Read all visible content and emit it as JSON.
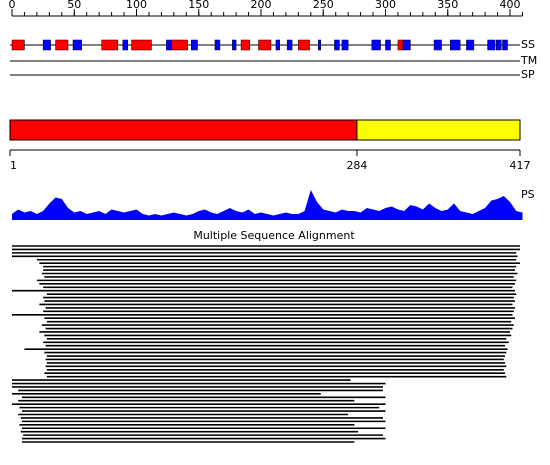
{
  "ruler": {
    "ticks": [
      0,
      50,
      100,
      150,
      200,
      250,
      300,
      350,
      400
    ],
    "minor_step": 10,
    "end": 410
  },
  "tracks": {
    "labels": [
      "SS",
      "TM",
      "SP"
    ]
  },
  "ss_colors": {
    "H": "#ff0000",
    "E": "#0000ff"
  },
  "secondary_structure": [
    [
      "H",
      0,
      10
    ],
    [
      "E",
      25,
      31
    ],
    [
      "H",
      35,
      45
    ],
    [
      "E",
      49,
      56
    ],
    [
      "H",
      72,
      85
    ],
    [
      "E",
      89,
      93
    ],
    [
      "H",
      96,
      112
    ],
    [
      "E",
      124,
      128
    ],
    [
      "H",
      128,
      141
    ],
    [
      "E",
      144,
      149
    ],
    [
      "E",
      163,
      167
    ],
    [
      "E",
      177,
      180
    ],
    [
      "H",
      184,
      191
    ],
    [
      "H",
      198,
      208
    ],
    [
      "E",
      212,
      215
    ],
    [
      "E",
      221,
      225
    ],
    [
      "H",
      230,
      239
    ],
    [
      "E",
      246,
      248
    ],
    [
      "E",
      259,
      263
    ],
    [
      "E",
      265,
      270
    ],
    [
      "E",
      289,
      296
    ],
    [
      "E",
      300,
      304
    ],
    [
      "H",
      310,
      314
    ],
    [
      "E",
      314,
      320
    ],
    [
      "E",
      339,
      345
    ],
    [
      "E",
      352,
      360
    ],
    [
      "E",
      365,
      371
    ],
    [
      "E",
      382,
      388
    ],
    [
      "E",
      389,
      393
    ],
    [
      "E",
      394,
      398
    ]
  ],
  "domains": {
    "boundaries": [
      1,
      284,
      417
    ],
    "colors": [
      "#ff0000",
      "#ffff00"
    ]
  },
  "ps": {
    "label": "PS",
    "color": "#0000ff",
    "step": 5,
    "values": [
      0.2,
      0.35,
      0.25,
      0.3,
      0.2,
      0.3,
      0.55,
      0.75,
      0.7,
      0.4,
      0.25,
      0.3,
      0.2,
      0.25,
      0.3,
      0.2,
      0.35,
      0.3,
      0.25,
      0.3,
      0.35,
      0.2,
      0.15,
      0.2,
      0.15,
      0.2,
      0.25,
      0.2,
      0.15,
      0.2,
      0.3,
      0.35,
      0.25,
      0.2,
      0.3,
      0.4,
      0.3,
      0.25,
      0.35,
      0.2,
      0.25,
      0.2,
      0.15,
      0.2,
      0.25,
      0.2,
      0.2,
      0.3,
      1.0,
      0.6,
      0.35,
      0.3,
      0.25,
      0.35,
      0.3,
      0.3,
      0.25,
      0.4,
      0.35,
      0.3,
      0.4,
      0.45,
      0.35,
      0.3,
      0.5,
      0.45,
      0.35,
      0.55,
      0.4,
      0.3,
      0.35,
      0.55,
      0.3,
      0.25,
      0.2,
      0.3,
      0.4,
      0.65,
      0.7,
      0.8,
      0.6,
      0.3,
      0.25
    ]
  },
  "alignment": {
    "title": "Multiple Sequence Alignment",
    "hits": [
      [
        0,
        408
      ],
      [
        0,
        408
      ],
      [
        0,
        405
      ],
      [
        0,
        406
      ],
      [
        20,
        405
      ],
      [
        22,
        408
      ],
      [
        25,
        405
      ],
      [
        25,
        404
      ],
      [
        24,
        406
      ],
      [
        26,
        403
      ],
      [
        20,
        405
      ],
      [
        22,
        404
      ],
      [
        25,
        402
      ],
      [
        0,
        404
      ],
      [
        28,
        405
      ],
      [
        25,
        403
      ],
      [
        26,
        404
      ],
      [
        22,
        402
      ],
      [
        27,
        404
      ],
      [
        25,
        403
      ],
      [
        0,
        402
      ],
      [
        26,
        404
      ],
      [
        28,
        401
      ],
      [
        24,
        403
      ],
      [
        27,
        402
      ],
      [
        22,
        400
      ],
      [
        26,
        401
      ],
      [
        28,
        397
      ],
      [
        25,
        399
      ],
      [
        27,
        396
      ],
      [
        10,
        398
      ],
      [
        26,
        397
      ],
      [
        28,
        396
      ],
      [
        27,
        395
      ],
      [
        28,
        396
      ],
      [
        27,
        397
      ],
      [
        28,
        395
      ],
      [
        26,
        396
      ],
      [
        28,
        397
      ],
      [
        0,
        272
      ],
      [
        0,
        300
      ],
      [
        0,
        298
      ],
      [
        5,
        298
      ],
      [
        0,
        248
      ],
      [
        8,
        300
      ],
      [
        5,
        275
      ],
      [
        0,
        300
      ],
      [
        6,
        295
      ],
      [
        8,
        300
      ],
      [
        5,
        270
      ],
      [
        7,
        298
      ],
      [
        8,
        300
      ],
      [
        6,
        275
      ],
      [
        8,
        300
      ],
      [
        7,
        278
      ],
      [
        9,
        298
      ],
      [
        8,
        300
      ],
      [
        8,
        275
      ]
    ]
  }
}
